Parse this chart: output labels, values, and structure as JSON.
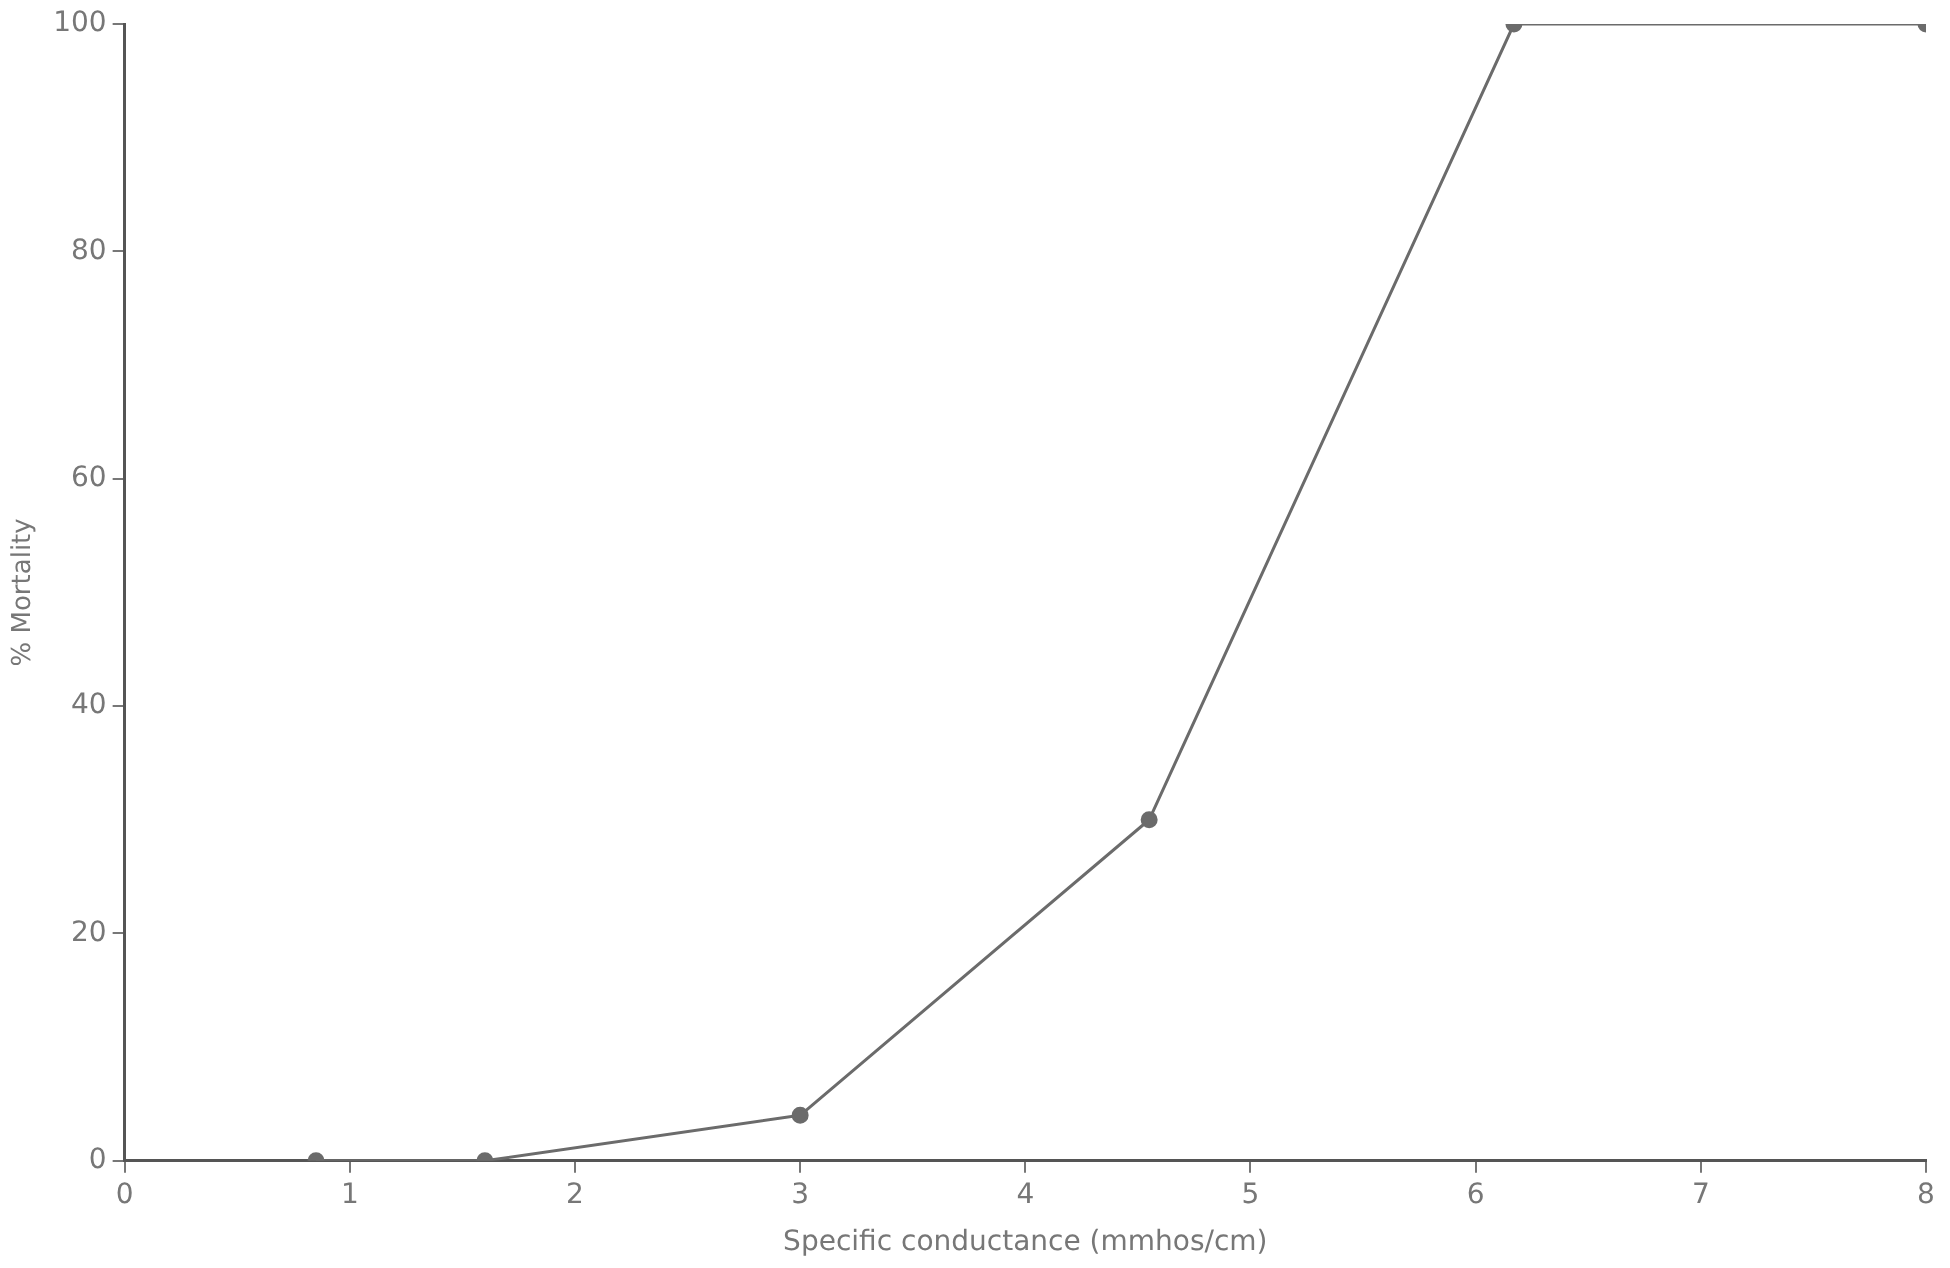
{
  "chart_data": {
    "type": "line",
    "xlabel": "Specific conductance (mmhos/cm)",
    "ylabel": "% Mortality",
    "x": [
      0.85,
      1.6,
      3.0,
      4.55,
      6.17,
      8
    ],
    "series": [
      {
        "color": "#6b6b6b",
        "values": [
          0,
          0,
          4,
          30,
          100,
          100
        ]
      }
    ],
    "xlim": [
      0,
      8
    ],
    "xticks": [
      0,
      1,
      2,
      3,
      4,
      5,
      6,
      7,
      8
    ],
    "ylim": [
      0,
      100
    ],
    "yticks": [
      0,
      20,
      40,
      60,
      80,
      100
    ],
    "grid": false,
    "legend": false,
    "marker": "circle",
    "line_style": "solid"
  }
}
